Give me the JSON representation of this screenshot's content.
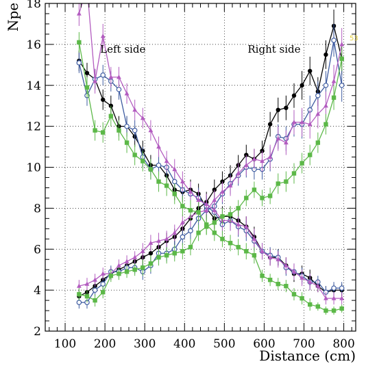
{
  "chart_data": {
    "type": "line",
    "xlabel": "Distance (cm)",
    "ylabel": "Npe",
    "xlim": [
      50,
      830
    ],
    "ylim": [
      2,
      18
    ],
    "xticks": [
      100,
      200,
      300,
      400,
      500,
      600,
      700,
      800
    ],
    "yticks": [
      2,
      4,
      6,
      8,
      10,
      12,
      14,
      16,
      18
    ],
    "grid": true,
    "annotations": [
      {
        "text": "Left side",
        "x": 245,
        "y": 15.6
      },
      {
        "text": "Right side",
        "x": 625,
        "y": 15.6
      }
    ],
    "side_note": {
      "text": "53",
      "color": "#e5d13c"
    },
    "series": [
      {
        "style": "black-filled-circle",
        "color": "#000000",
        "x": [
          135,
          155,
          175,
          195,
          215,
          235,
          255,
          275,
          295,
          315,
          335,
          355,
          375,
          395,
          415,
          435,
          455,
          475,
          495,
          515,
          535,
          555,
          575,
          595,
          615,
          635,
          655,
          675,
          695,
          715,
          735,
          755,
          775,
          795
        ],
        "values": [
          15.2,
          14.6,
          14.3,
          13.3,
          13.0,
          12.0,
          12.0,
          11.5,
          10.8,
          10.1,
          10.1,
          9.6,
          8.9,
          8.8,
          8.9,
          8.7,
          8.0,
          7.5,
          7.6,
          7.6,
          7.4,
          7.1,
          6.6,
          5.9,
          5.6,
          5.6,
          5.2,
          4.8,
          4.8,
          4.6,
          4.2,
          3.9,
          4.0,
          4.0
        ],
        "err": [
          0.5,
          0.5,
          0.5,
          0.5,
          0.5,
          0.5,
          0.5,
          0.5,
          0.5,
          0.5,
          0.5,
          0.5,
          0.5,
          0.5,
          0.5,
          0.5,
          0.5,
          0.5,
          0.5,
          0.5,
          0.5,
          0.5,
          0.5,
          0.4,
          0.4,
          0.4,
          0.4,
          0.4,
          0.4,
          0.4,
          0.3,
          0.3,
          0.3,
          0.3
        ]
      },
      {
        "style": "black-filled-circle",
        "color": "#000000",
        "x": [
          135,
          155,
          175,
          195,
          215,
          235,
          255,
          275,
          295,
          315,
          335,
          355,
          375,
          395,
          415,
          435,
          455,
          475,
          495,
          515,
          535,
          555,
          575,
          595,
          615,
          635,
          655,
          675,
          695,
          715,
          735,
          755,
          775,
          795
        ],
        "values": [
          3.7,
          3.9,
          4.2,
          4.5,
          4.8,
          5.0,
          5.2,
          5.4,
          5.6,
          5.8,
          6.1,
          6.4,
          6.6,
          7.0,
          7.5,
          8.0,
          8.3,
          8.9,
          9.3,
          9.6,
          10.1,
          10.6,
          10.4,
          10.8,
          12.1,
          12.8,
          12.9,
          13.5,
          14.0,
          14.7,
          13.7,
          15.5,
          16.9,
          15.3
        ],
        "err": [
          0.3,
          0.3,
          0.3,
          0.3,
          0.3,
          0.3,
          0.3,
          0.3,
          0.4,
          0.4,
          0.4,
          0.4,
          0.4,
          0.4,
          0.5,
          0.5,
          0.5,
          0.5,
          0.5,
          0.5,
          0.5,
          0.5,
          0.5,
          0.5,
          0.6,
          0.6,
          0.6,
          0.6,
          0.7,
          0.7,
          0.7,
          0.7,
          0.8,
          0.8
        ]
      },
      {
        "style": "blue-open-circle",
        "color": "#3c5aa0",
        "x": [
          135,
          155,
          175,
          195,
          215,
          235,
          255,
          275,
          295,
          315,
          335,
          355,
          375,
          395,
          415,
          435,
          455,
          475,
          495,
          515,
          535,
          555,
          575,
          595,
          615,
          635,
          655,
          675,
          695,
          715,
          735,
          755,
          775,
          795
        ],
        "values": [
          15.1,
          13.5,
          14.3,
          14.5,
          14.2,
          13.8,
          12.0,
          11.8,
          10.5,
          9.9,
          10.1,
          10.0,
          9.3,
          8.9,
          8.7,
          8.5,
          8.1,
          7.8,
          7.2,
          7.4,
          7.1,
          6.9,
          6.4,
          5.9,
          5.7,
          5.6,
          5.1,
          4.9,
          4.7,
          4.4,
          4.4,
          3.9,
          4.1,
          4.1
        ],
        "err": [
          0.5,
          0.5,
          0.5,
          0.5,
          0.5,
          0.5,
          0.5,
          0.5,
          0.5,
          0.5,
          0.5,
          0.5,
          0.5,
          0.5,
          0.5,
          0.5,
          0.5,
          0.5,
          0.5,
          0.5,
          0.5,
          0.5,
          0.5,
          0.4,
          0.4,
          0.4,
          0.4,
          0.4,
          0.4,
          0.4,
          0.3,
          0.3,
          0.3,
          0.3
        ]
      },
      {
        "style": "blue-open-circle",
        "color": "#3c5aa0",
        "x": [
          135,
          155,
          175,
          195,
          215,
          235,
          255,
          275,
          295,
          315,
          335,
          355,
          375,
          395,
          415,
          435,
          455,
          475,
          495,
          515,
          535,
          555,
          575,
          595,
          615,
          635,
          655,
          675,
          695,
          715,
          735,
          755,
          775,
          795
        ],
        "values": [
          3.4,
          3.4,
          4.0,
          4.3,
          4.9,
          4.9,
          5.1,
          5.1,
          4.9,
          5.2,
          5.8,
          5.8,
          6.0,
          6.6,
          6.9,
          7.5,
          7.9,
          8.1,
          8.7,
          9.2,
          9.6,
          10.0,
          9.9,
          9.9,
          10.4,
          11.5,
          11.4,
          12.1,
          12.1,
          12.8,
          13.5,
          14.0,
          16.2,
          14.0
        ],
        "err": [
          0.3,
          0.3,
          0.3,
          0.3,
          0.3,
          0.3,
          0.3,
          0.3,
          0.4,
          0.4,
          0.4,
          0.4,
          0.4,
          0.4,
          0.5,
          0.5,
          0.5,
          0.5,
          0.5,
          0.5,
          0.5,
          0.5,
          0.5,
          0.5,
          0.6,
          0.6,
          0.6,
          0.6,
          0.7,
          0.7,
          0.7,
          0.7,
          0.8,
          0.8
        ]
      },
      {
        "style": "magenta-triangle",
        "color": "#b35cc0",
        "x": [
          135,
          155,
          175,
          195,
          215,
          235,
          255,
          275,
          295,
          315,
          335,
          355,
          375,
          395,
          415,
          435,
          455,
          475,
          495,
          515,
          535,
          555,
          575,
          595,
          615,
          635,
          655,
          675,
          695,
          715,
          735,
          755,
          775,
          795
        ],
        "values": [
          17.5,
          18.8,
          14.2,
          16.4,
          14.4,
          14.4,
          13.6,
          12.8,
          12.4,
          11.8,
          11.0,
          10.3,
          9.9,
          9.3,
          8.8,
          8.4,
          8.2,
          7.9,
          7.4,
          7.4,
          7.2,
          7.1,
          6.5,
          5.9,
          5.6,
          5.5,
          5.2,
          4.9,
          4.6,
          4.4,
          4.2,
          3.6,
          3.6,
          3.6
        ],
        "err": [
          0.6,
          0.6,
          0.6,
          0.6,
          0.5,
          0.5,
          0.5,
          0.5,
          0.5,
          0.5,
          0.5,
          0.5,
          0.5,
          0.5,
          0.5,
          0.5,
          0.5,
          0.5,
          0.5,
          0.5,
          0.5,
          0.5,
          0.5,
          0.4,
          0.4,
          0.4,
          0.4,
          0.4,
          0.4,
          0.4,
          0.3,
          0.3,
          0.3,
          0.3
        ]
      },
      {
        "style": "magenta-triangle",
        "color": "#b35cc0",
        "x": [
          135,
          155,
          175,
          195,
          215,
          235,
          255,
          275,
          295,
          315,
          335,
          355,
          375,
          395,
          415,
          435,
          455,
          475,
          495,
          515,
          535,
          555,
          575,
          595,
          615,
          635,
          655,
          675,
          695,
          715,
          735,
          755,
          775,
          795
        ],
        "values": [
          4.2,
          4.3,
          4.5,
          4.8,
          4.8,
          5.2,
          5.4,
          5.6,
          5.9,
          6.3,
          6.4,
          6.5,
          6.8,
          7.3,
          7.6,
          7.8,
          7.9,
          8.4,
          8.8,
          9.1,
          9.7,
          10.1,
          10.4,
          10.3,
          10.5,
          11.4,
          11.2,
          12.2,
          12.2,
          12.1,
          12.6,
          13.0,
          14.2,
          16.0
        ],
        "err": [
          0.3,
          0.3,
          0.3,
          0.3,
          0.3,
          0.3,
          0.3,
          0.3,
          0.4,
          0.4,
          0.4,
          0.4,
          0.4,
          0.4,
          0.5,
          0.5,
          0.5,
          0.5,
          0.5,
          0.5,
          0.5,
          0.5,
          0.5,
          0.5,
          0.6,
          0.6,
          0.6,
          0.6,
          0.7,
          0.7,
          0.7,
          0.7,
          0.8,
          0.8
        ]
      },
      {
        "style": "green-filled-square",
        "color": "#5cb848",
        "x": [
          135,
          155,
          175,
          195,
          215,
          235,
          255,
          275,
          295,
          315,
          335,
          355,
          375,
          395,
          415,
          435,
          455,
          475,
          495,
          515,
          535,
          555,
          575,
          595,
          615,
          635,
          655,
          675,
          695,
          715,
          735,
          755,
          775,
          795
        ],
        "values": [
          16.1,
          13.9,
          11.8,
          11.7,
          12.5,
          11.8,
          11.2,
          10.6,
          10.3,
          9.9,
          9.3,
          9.1,
          8.7,
          8.1,
          7.9,
          7.8,
          7.2,
          6.8,
          6.5,
          6.3,
          6.1,
          5.9,
          5.7,
          4.7,
          4.5,
          4.3,
          4.2,
          3.8,
          3.6,
          3.3,
          3.2,
          3.0,
          3.0,
          3.1
        ],
        "err": [
          0.5,
          0.5,
          0.5,
          0.5,
          0.5,
          0.5,
          0.5,
          0.5,
          0.5,
          0.5,
          0.5,
          0.5,
          0.5,
          0.5,
          0.5,
          0.5,
          0.5,
          0.4,
          0.4,
          0.4,
          0.4,
          0.4,
          0.4,
          0.3,
          0.3,
          0.3,
          0.3,
          0.3,
          0.3,
          0.3,
          0.2,
          0.2,
          0.2,
          0.2
        ]
      },
      {
        "style": "green-filled-square",
        "color": "#5cb848",
        "x": [
          135,
          155,
          175,
          195,
          215,
          235,
          255,
          275,
          295,
          315,
          335,
          355,
          375,
          395,
          415,
          435,
          455,
          475,
          495,
          515,
          535,
          555,
          575,
          595,
          615,
          635,
          655,
          675,
          695,
          715,
          735,
          755,
          775,
          795
        ],
        "values": [
          3.8,
          3.7,
          3.5,
          3.9,
          4.7,
          4.8,
          4.9,
          5.0,
          5.1,
          5.3,
          5.6,
          5.7,
          5.8,
          5.9,
          6.1,
          6.8,
          7.1,
          7.3,
          7.6,
          7.7,
          8.0,
          8.5,
          8.9,
          8.5,
          8.6,
          9.2,
          9.3,
          9.7,
          10.2,
          10.6,
          11.2,
          12.1,
          13.4,
          15.3
        ],
        "err": [
          0.3,
          0.3,
          0.3,
          0.3,
          0.3,
          0.3,
          0.3,
          0.3,
          0.4,
          0.4,
          0.4,
          0.4,
          0.4,
          0.4,
          0.4,
          0.4,
          0.4,
          0.4,
          0.4,
          0.4,
          0.4,
          0.4,
          0.4,
          0.4,
          0.4,
          0.5,
          0.5,
          0.5,
          0.5,
          0.5,
          0.5,
          0.5,
          0.6,
          0.6
        ]
      }
    ]
  }
}
